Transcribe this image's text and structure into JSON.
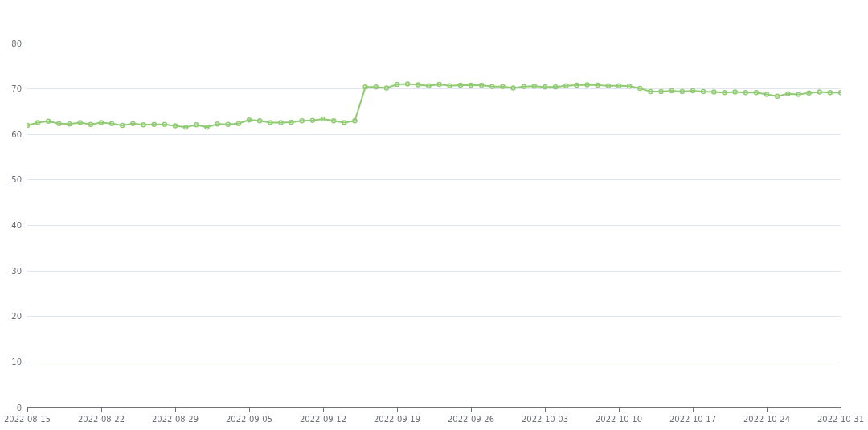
{
  "chart_data": {
    "type": "line",
    "x": [
      "2022-08-15",
      "2022-08-16",
      "2022-08-17",
      "2022-08-18",
      "2022-08-19",
      "2022-08-20",
      "2022-08-21",
      "2022-08-22",
      "2022-08-23",
      "2022-08-24",
      "2022-08-25",
      "2022-08-26",
      "2022-08-27",
      "2022-08-28",
      "2022-08-29",
      "2022-08-30",
      "2022-08-31",
      "2022-09-01",
      "2022-09-02",
      "2022-09-03",
      "2022-09-04",
      "2022-09-05",
      "2022-09-06",
      "2022-09-07",
      "2022-09-08",
      "2022-09-09",
      "2022-09-10",
      "2022-09-11",
      "2022-09-12",
      "2022-09-13",
      "2022-09-14",
      "2022-09-15",
      "2022-09-16",
      "2022-09-17",
      "2022-09-18",
      "2022-09-19",
      "2022-09-20",
      "2022-09-21",
      "2022-09-22",
      "2022-09-23",
      "2022-09-24",
      "2022-09-25",
      "2022-09-26",
      "2022-09-27",
      "2022-09-28",
      "2022-09-29",
      "2022-09-30",
      "2022-10-01",
      "2022-10-02",
      "2022-10-03",
      "2022-10-04",
      "2022-10-05",
      "2022-10-06",
      "2022-10-07",
      "2022-10-08",
      "2022-10-09",
      "2022-10-10",
      "2022-10-11",
      "2022-10-12",
      "2022-10-13",
      "2022-10-14",
      "2022-10-15",
      "2022-10-16",
      "2022-10-17",
      "2022-10-18",
      "2022-10-19",
      "2022-10-20",
      "2022-10-21",
      "2022-10-22",
      "2022-10-23",
      "2022-10-24",
      "2022-10-25",
      "2022-10-26",
      "2022-10-27",
      "2022-10-28",
      "2022-10-29",
      "2022-10-30",
      "2022-10-31"
    ],
    "series": [
      {
        "color": "#91cc75",
        "values": [
          62.0,
          62.6,
          62.9,
          62.4,
          62.3,
          62.6,
          62.2,
          62.6,
          62.4,
          62.0,
          62.4,
          62.1,
          62.2,
          62.2,
          61.9,
          61.6,
          62.1,
          61.6,
          62.3,
          62.2,
          62.4,
          63.2,
          63.0,
          62.6,
          62.6,
          62.7,
          63.0,
          63.1,
          63.4,
          63.0,
          62.6,
          63.0,
          70.4,
          70.4,
          70.2,
          71.0,
          71.1,
          70.9,
          70.7,
          71.0,
          70.7,
          70.8,
          70.8,
          70.8,
          70.5,
          70.5,
          70.2,
          70.5,
          70.6,
          70.4,
          70.4,
          70.7,
          70.8,
          70.9,
          70.8,
          70.7,
          70.7,
          70.6,
          70.1,
          69.4,
          69.4,
          69.6,
          69.4,
          69.6,
          69.4,
          69.3,
          69.2,
          69.3,
          69.2,
          69.2,
          68.8,
          68.4,
          68.9,
          68.8,
          69.1,
          69.3,
          69.2,
          69.2
        ]
      }
    ],
    "xlim": [
      "2022-08-15",
      "2022-10-31"
    ],
    "xticks": [
      "2022-08-15",
      "2022-08-22",
      "2022-08-29",
      "2022-09-05",
      "2022-09-12",
      "2022-09-19",
      "2022-09-26",
      "2022-10-03",
      "2022-10-10",
      "2022-10-17",
      "2022-10-24",
      "2022-10-31"
    ],
    "ylim": [
      0,
      80
    ],
    "yticks": [
      0,
      10,
      20,
      30,
      40,
      50,
      60,
      70,
      80
    ],
    "grid": "y",
    "marker": "circle",
    "line_style": "solid"
  }
}
